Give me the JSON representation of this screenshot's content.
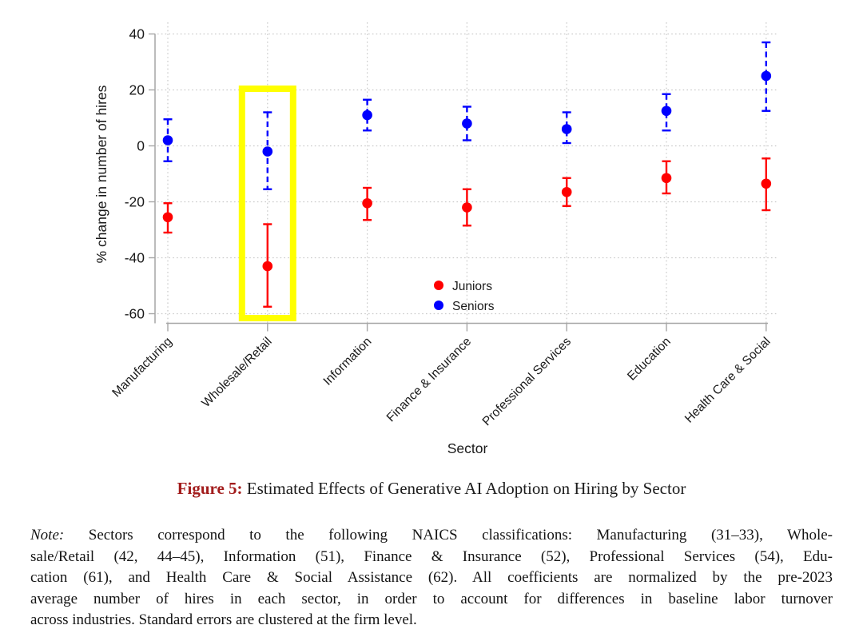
{
  "figure": {
    "caption_label": "Figure 5:",
    "caption_label_color": "#A21C1C",
    "caption_text": " Estimated Effects of Generative AI Adoption on Hiring by Sector"
  },
  "note": {
    "prefix": "Note:",
    "lines": [
      "Sectors correspond to the following NAICS classifications: Manufacturing (31–33), Whole-",
      "sale/Retail (42, 44–45), Information (51), Finance & Insurance (52), Professional Services (54), Edu-",
      "cation (61), and Health Care & Social Assistance (62). All coefficients are normalized by the pre-2023",
      "average number of hires in each sector, in order to account for differences in baseline labor turnover",
      "across industries. Standard errors are clustered at the firm level."
    ]
  },
  "chart_data": {
    "type": "scatter",
    "subtype": "coefficient-plot-with-error-bars",
    "title": "",
    "xlabel": "Sector",
    "ylabel": "% change in number of hires",
    "grid": "dotted",
    "yticks": [
      40,
      20,
      0,
      -20,
      -40,
      -60
    ],
    "ylim": [
      -63,
      42
    ],
    "categories": [
      "Manufacturing",
      "Wholesale/Retail",
      "Information",
      "Finance & Insurance",
      "Professional Services",
      "Education",
      "Health Care & Social"
    ],
    "highlight_box": {
      "category": "Wholesale/Retail",
      "color": "#FFFF00"
    },
    "legend": {
      "position": "inside-bottom-center"
    },
    "series": [
      {
        "name": "Juniors",
        "color": "#FF0000",
        "errorbar_style": "solid",
        "values": [
          -25.5,
          -43,
          -20.5,
          -22,
          -16.5,
          -11.5,
          -13.5
        ],
        "ci_low": [
          -31,
          -57.5,
          -26.5,
          -28.5,
          -21.5,
          -17,
          -23
        ],
        "ci_high": [
          -20.5,
          -28,
          -15,
          -15.5,
          -11.5,
          -5.5,
          -4.5
        ]
      },
      {
        "name": "Seniors",
        "color": "#0000FF",
        "errorbar_style": "dashed",
        "values": [
          2,
          -2,
          11,
          8,
          6,
          12.5,
          25
        ],
        "ci_low": [
          -5.5,
          -15.5,
          5.5,
          2,
          1,
          5.5,
          12.5
        ],
        "ci_high": [
          9.5,
          12,
          16.5,
          14,
          12,
          18.5,
          37
        ]
      }
    ]
  }
}
